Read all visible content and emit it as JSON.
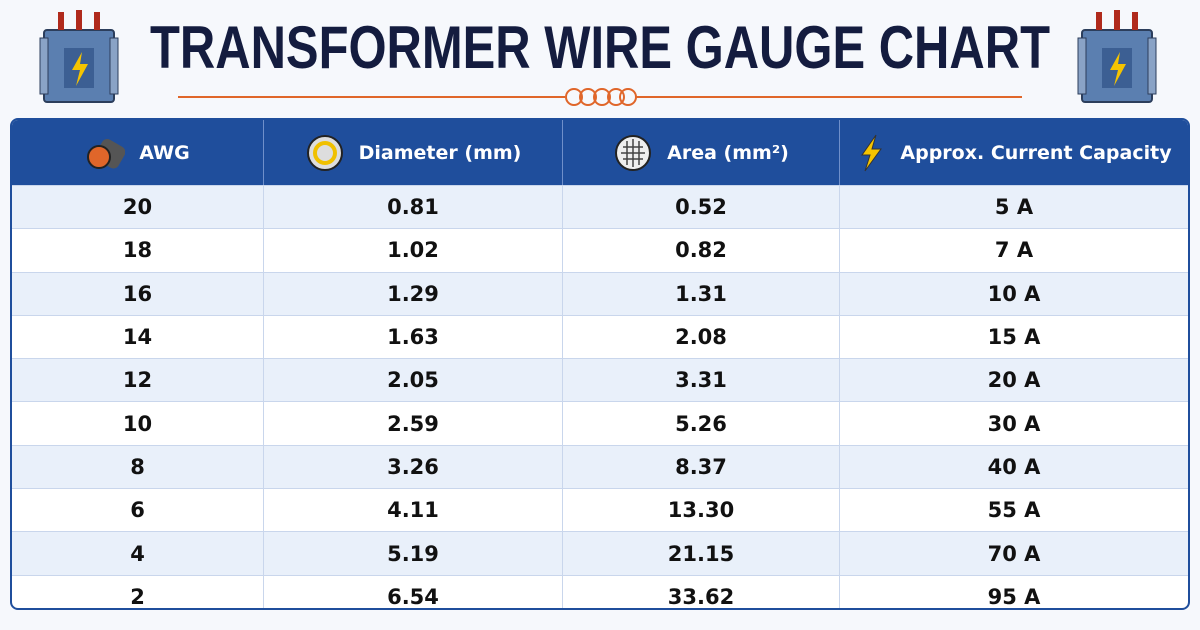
{
  "header": {
    "title": "TRANSFORMER WIRE GAUGE CHART"
  },
  "table": {
    "columns": [
      "AWG",
      "Diameter (mm)",
      "Area (mm²)",
      "Approx. Current Capacity"
    ],
    "rows": [
      [
        "20",
        "0.81",
        "0.52",
        "5 A"
      ],
      [
        "18",
        "1.02",
        "0.82",
        "7 A"
      ],
      [
        "16",
        "1.29",
        "1.31",
        "10 A"
      ],
      [
        "14",
        "1.63",
        "2.08",
        "15 A"
      ],
      [
        "12",
        "2.05",
        "3.31",
        "20 A"
      ],
      [
        "10",
        "2.59",
        "5.26",
        "30 A"
      ],
      [
        "8",
        "3.26",
        "8.37",
        "40 A"
      ],
      [
        "6",
        "4.11",
        "13.30",
        "55 A"
      ],
      [
        "4",
        "5.19",
        "21.15",
        "70 A"
      ],
      [
        "2",
        "6.54",
        "33.62",
        "95 A"
      ]
    ]
  }
}
